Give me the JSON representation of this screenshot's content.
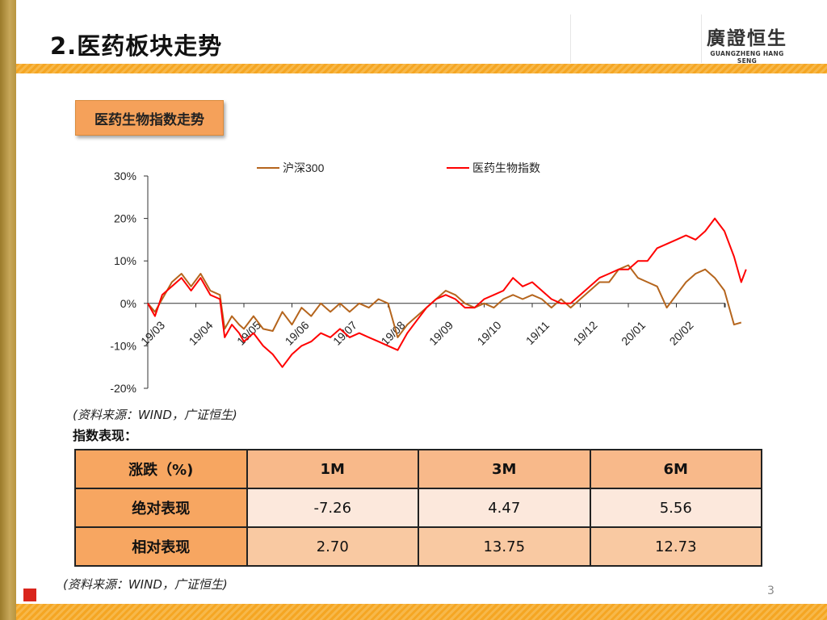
{
  "slide": {
    "title": "2.医药板块走势",
    "logo_cn": "廣證恒生",
    "logo_en": "GUANGZHENG HANG SENG",
    "chart_label": "医药生物指数走势",
    "source_chart": "(资料来源：WIND，广证恒生)",
    "table_heading": "指数表现：",
    "source_table": "(资料来源：WIND，广证恒生)",
    "page_number": "3"
  },
  "table": {
    "headers": [
      "涨跌（%)",
      "1M",
      "3M",
      "6M"
    ],
    "rows": [
      {
        "label": "绝对表现",
        "values": [
          "-7.26",
          "4.47",
          "5.56"
        ]
      },
      {
        "label": "相对表现",
        "values": [
          "2.70",
          "13.75",
          "12.73"
        ]
      }
    ]
  },
  "colors": {
    "accent": "#f5a623",
    "series_hs300": "#b5651d",
    "series_pharma": "#ff0000",
    "brand_red": "#d9251c"
  },
  "chart_data": {
    "type": "line",
    "title": "",
    "xlabel": "",
    "ylabel": "",
    "ylim": [
      -20,
      30
    ],
    "yticks": [
      "30%",
      "20%",
      "10%",
      "0%",
      "-10%",
      "-20%"
    ],
    "ytick_values": [
      30,
      20,
      10,
      0,
      -10,
      -20
    ],
    "x_tick_labels": [
      "19/03",
      "19/04",
      "19/05",
      "19/06",
      "19/07",
      "19/08",
      "19/09",
      "19/10",
      "19/11",
      "19/12",
      "20/01",
      "20/02"
    ],
    "x_range": [
      0,
      12
    ],
    "legend_position": "top",
    "grid": false,
    "series": [
      {
        "name": "沪深300",
        "color": "#b5651d",
        "points": [
          [
            0,
            0
          ],
          [
            0.15,
            -2
          ],
          [
            0.3,
            1
          ],
          [
            0.5,
            5
          ],
          [
            0.7,
            7
          ],
          [
            0.9,
            4
          ],
          [
            1.1,
            7
          ],
          [
            1.3,
            3
          ],
          [
            1.5,
            2
          ],
          [
            1.6,
            -6
          ],
          [
            1.75,
            -3
          ],
          [
            1.9,
            -5
          ],
          [
            2.0,
            -6
          ],
          [
            2.2,
            -3
          ],
          [
            2.4,
            -6
          ],
          [
            2.6,
            -6.5
          ],
          [
            2.8,
            -2
          ],
          [
            3.0,
            -5
          ],
          [
            3.2,
            -1
          ],
          [
            3.4,
            -3
          ],
          [
            3.6,
            0
          ],
          [
            3.8,
            -2
          ],
          [
            4.0,
            0
          ],
          [
            4.2,
            -2
          ],
          [
            4.4,
            0
          ],
          [
            4.6,
            -1
          ],
          [
            4.8,
            1
          ],
          [
            5.0,
            0
          ],
          [
            5.2,
            -8
          ],
          [
            5.4,
            -5
          ],
          [
            5.6,
            -3
          ],
          [
            5.8,
            -1
          ],
          [
            6.0,
            1
          ],
          [
            6.2,
            3
          ],
          [
            6.4,
            2
          ],
          [
            6.6,
            0
          ],
          [
            6.8,
            -1
          ],
          [
            7.0,
            0
          ],
          [
            7.2,
            -1
          ],
          [
            7.4,
            1
          ],
          [
            7.6,
            2
          ],
          [
            7.8,
            1
          ],
          [
            8.0,
            2
          ],
          [
            8.2,
            1
          ],
          [
            8.4,
            -1
          ],
          [
            8.6,
            1
          ],
          [
            8.8,
            -1
          ],
          [
            9.0,
            1
          ],
          [
            9.2,
            3
          ],
          [
            9.4,
            5
          ],
          [
            9.6,
            5
          ],
          [
            9.8,
            8
          ],
          [
            10.0,
            9
          ],
          [
            10.2,
            6
          ],
          [
            10.4,
            5
          ],
          [
            10.6,
            4
          ],
          [
            10.8,
            -1
          ],
          [
            11.0,
            2
          ],
          [
            11.2,
            5
          ],
          [
            11.4,
            7
          ],
          [
            11.6,
            8
          ],
          [
            11.8,
            6
          ],
          [
            12.0,
            3
          ],
          [
            12.2,
            -5
          ],
          [
            12.35,
            -4.5
          ]
        ]
      },
      {
        "name": "医药生物指数",
        "color": "#ff0000",
        "points": [
          [
            0,
            0
          ],
          [
            0.15,
            -3
          ],
          [
            0.3,
            2
          ],
          [
            0.5,
            4
          ],
          [
            0.7,
            6
          ],
          [
            0.9,
            3
          ],
          [
            1.1,
            6
          ],
          [
            1.3,
            2
          ],
          [
            1.5,
            1
          ],
          [
            1.6,
            -8
          ],
          [
            1.75,
            -5
          ],
          [
            1.9,
            -7
          ],
          [
            2.0,
            -9
          ],
          [
            2.2,
            -7
          ],
          [
            2.4,
            -10
          ],
          [
            2.6,
            -12
          ],
          [
            2.8,
            -15
          ],
          [
            3.0,
            -12
          ],
          [
            3.2,
            -10
          ],
          [
            3.4,
            -9
          ],
          [
            3.6,
            -7
          ],
          [
            3.8,
            -8
          ],
          [
            4.0,
            -6
          ],
          [
            4.2,
            -8
          ],
          [
            4.4,
            -7
          ],
          [
            4.6,
            -8
          ],
          [
            4.8,
            -9
          ],
          [
            5.0,
            -10
          ],
          [
            5.2,
            -11
          ],
          [
            5.4,
            -7
          ],
          [
            5.6,
            -4
          ],
          [
            5.8,
            -1
          ],
          [
            6.0,
            1
          ],
          [
            6.2,
            2
          ],
          [
            6.4,
            1
          ],
          [
            6.6,
            -1
          ],
          [
            6.8,
            -1
          ],
          [
            7.0,
            1
          ],
          [
            7.2,
            2
          ],
          [
            7.4,
            3
          ],
          [
            7.6,
            6
          ],
          [
            7.8,
            4
          ],
          [
            8.0,
            5
          ],
          [
            8.2,
            3
          ],
          [
            8.4,
            1
          ],
          [
            8.6,
            0
          ],
          [
            8.8,
            0
          ],
          [
            9.0,
            2
          ],
          [
            9.2,
            4
          ],
          [
            9.4,
            6
          ],
          [
            9.6,
            7
          ],
          [
            9.8,
            8
          ],
          [
            10.0,
            8
          ],
          [
            10.2,
            10
          ],
          [
            10.4,
            10
          ],
          [
            10.6,
            13
          ],
          [
            10.8,
            14
          ],
          [
            11.0,
            15
          ],
          [
            11.2,
            16
          ],
          [
            11.4,
            15
          ],
          [
            11.6,
            17
          ],
          [
            11.8,
            20
          ],
          [
            12.0,
            17
          ],
          [
            12.2,
            11
          ],
          [
            12.35,
            5
          ],
          [
            12.45,
            8
          ]
        ]
      }
    ]
  }
}
